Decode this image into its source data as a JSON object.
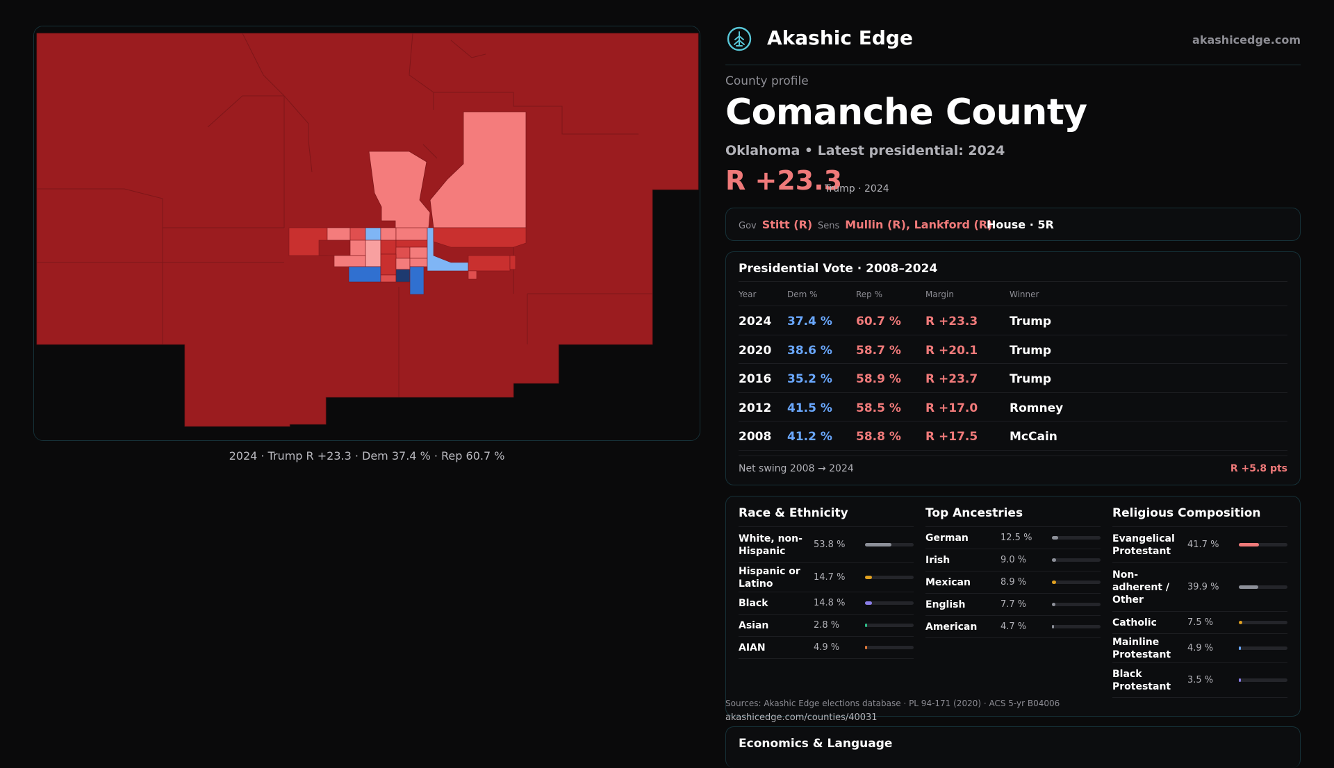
{
  "map": {
    "caption": "2024 · Trump R +23.3 · Dem 37.4 % · Rep 60.7 %",
    "colors": {
      "strong_rep": "#9b1c1f",
      "rep": "#c9302f",
      "lean_rep": "#f47c7c",
      "lean_dem": "#7fb5f5",
      "dem": "#3070d0",
      "strong_dem": "#1d3a70"
    }
  },
  "header": {
    "logo_icon": "tree-logo-icon",
    "brand": "Akashic Edge",
    "site": "akashicedge.com"
  },
  "profile": {
    "eyebrow": "County profile",
    "title": "Comanche County",
    "subtitle": "Oklahoma • Latest presidential: 2024",
    "margin": "R +23.3",
    "margin_note": "Trump · 2024"
  },
  "officials": {
    "gov_label": "Gov",
    "gov": "Stitt (R)",
    "sens_label": "Sens",
    "sens": "Mullin (R), Lankford (R)",
    "house": "House · 5R"
  },
  "presidential": {
    "title": "Presidential Vote · 2008–2024",
    "headers": {
      "year": "Year",
      "dem": "Dem %",
      "rep": "Rep %",
      "margin": "Margin",
      "winner": "Winner"
    },
    "rows": [
      {
        "year": "2024",
        "dem": "37.4 %",
        "rep": "60.7 %",
        "margin": "R +23.3",
        "winner": "Trump"
      },
      {
        "year": "2020",
        "dem": "38.6 %",
        "rep": "58.7 %",
        "margin": "R +20.1",
        "winner": "Trump"
      },
      {
        "year": "2016",
        "dem": "35.2 %",
        "rep": "58.9 %",
        "margin": "R +23.7",
        "winner": "Trump"
      },
      {
        "year": "2012",
        "dem": "41.5 %",
        "rep": "58.5 %",
        "margin": "R +17.0",
        "winner": "Romney"
      },
      {
        "year": "2008",
        "dem": "41.2 %",
        "rep": "58.8 %",
        "margin": "R +17.5",
        "winner": "McCain"
      }
    ],
    "swing_label": "Net swing 2008 → 2024",
    "swing_value": "R +5.8 pts"
  },
  "race": {
    "title": "Race & Ethnicity",
    "items": [
      {
        "label": "White, non-Hispanic",
        "value": "53.8 %",
        "pct": 53.8,
        "color": "#8d9099"
      },
      {
        "label": "Hispanic or Latino",
        "value": "14.7 %",
        "pct": 14.7,
        "color": "#e0a020"
      },
      {
        "label": "Black",
        "value": "14.8 %",
        "pct": 14.8,
        "color": "#8b7ee8"
      },
      {
        "label": "Asian",
        "value": "2.8 %",
        "pct": 2.8,
        "color": "#2fbf8a"
      },
      {
        "label": "AIAN",
        "value": "4.9 %",
        "pct": 4.9,
        "color": "#e07a3a"
      }
    ]
  },
  "ancestry": {
    "title": "Top Ancestries",
    "items": [
      {
        "label": "German",
        "value": "12.5 %",
        "pct": 12.5,
        "color": "#8d9099"
      },
      {
        "label": "Irish",
        "value": "9.0 %",
        "pct": 9.0,
        "color": "#8d9099"
      },
      {
        "label": "Mexican",
        "value": "8.9 %",
        "pct": 8.9,
        "color": "#e0a020"
      },
      {
        "label": "English",
        "value": "7.7 %",
        "pct": 7.7,
        "color": "#8d9099"
      },
      {
        "label": "American",
        "value": "4.7 %",
        "pct": 4.7,
        "color": "#8d9099"
      }
    ]
  },
  "religion": {
    "title": "Religious Composition",
    "items": [
      {
        "label": "Evangelical Protestant",
        "value": "41.7 %",
        "pct": 41.7,
        "color": "#f07a7a"
      },
      {
        "label": "Non-adherent / Other",
        "value": "39.9 %",
        "pct": 39.9,
        "color": "#8d9099"
      },
      {
        "label": "Catholic",
        "value": "7.5 %",
        "pct": 7.5,
        "color": "#e0a020"
      },
      {
        "label": "Mainline Protestant",
        "value": "4.9 %",
        "pct": 4.9,
        "color": "#6aa8ff"
      },
      {
        "label": "Black Protestant",
        "value": "3.5 %",
        "pct": 3.5,
        "color": "#8b7ee8"
      }
    ]
  },
  "footer": {
    "sources": "Sources: Akashic Edge elections database · PL 94-171 (2020) · ACS 5-yr B04006",
    "url": "akashicedge.com/counties/40031"
  },
  "economics": {
    "title": "Economics & Language"
  }
}
